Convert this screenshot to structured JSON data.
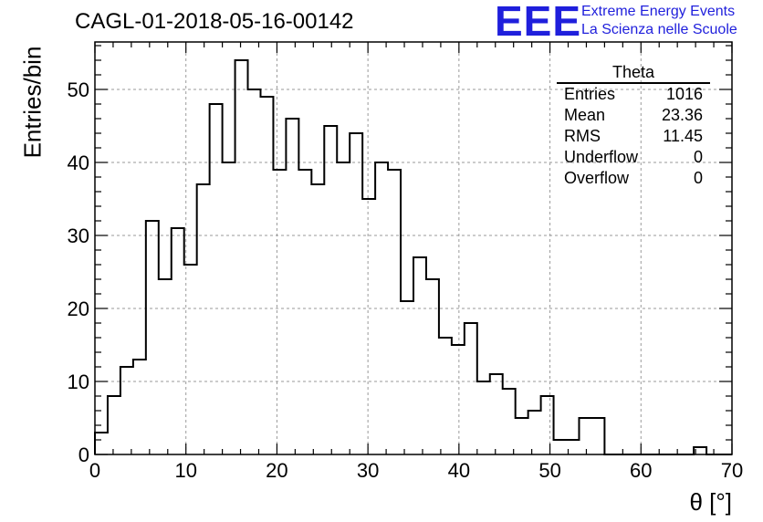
{
  "plot_title": "CAGL-01-2018-05-16-00142",
  "logo": {
    "mark": "EEE",
    "line1": "Extreme Energy Events",
    "line2": "La Scienza nelle Scuole",
    "color": "#1f1fdc"
  },
  "stats": {
    "name": "Theta",
    "rows": [
      {
        "label": "Entries",
        "value": "1016"
      },
      {
        "label": "Mean",
        "value": "23.36"
      },
      {
        "label": "RMS",
        "value": "11.45"
      },
      {
        "label": "Underflow",
        "value": "0"
      },
      {
        "label": "Overflow",
        "value": "0"
      }
    ]
  },
  "chart_data": {
    "type": "bar",
    "histogram": true,
    "xlabel": "θ [°]",
    "ylabel": "Entries/bin",
    "xlim": [
      0,
      70
    ],
    "ylim": [
      0,
      56.5
    ],
    "bin_width": 1.4,
    "bin_start": 0,
    "values": [
      3,
      8,
      12,
      13,
      32,
      24,
      31,
      26,
      37,
      48,
      40,
      54,
      50,
      49,
      39,
      46,
      39,
      37,
      45,
      40,
      44,
      35,
      40,
      39,
      21,
      27,
      24,
      16,
      15,
      18,
      10,
      11,
      9,
      5,
      6,
      8,
      2,
      2,
      5,
      5,
      0,
      0,
      0,
      0,
      0,
      0,
      0,
      1,
      0,
      0
    ],
    "x_ticks": [
      0,
      10,
      20,
      30,
      40,
      50,
      60,
      70
    ],
    "y_ticks": [
      0,
      10,
      20,
      30,
      40,
      50
    ],
    "grid": true,
    "line_color": "#000000"
  }
}
